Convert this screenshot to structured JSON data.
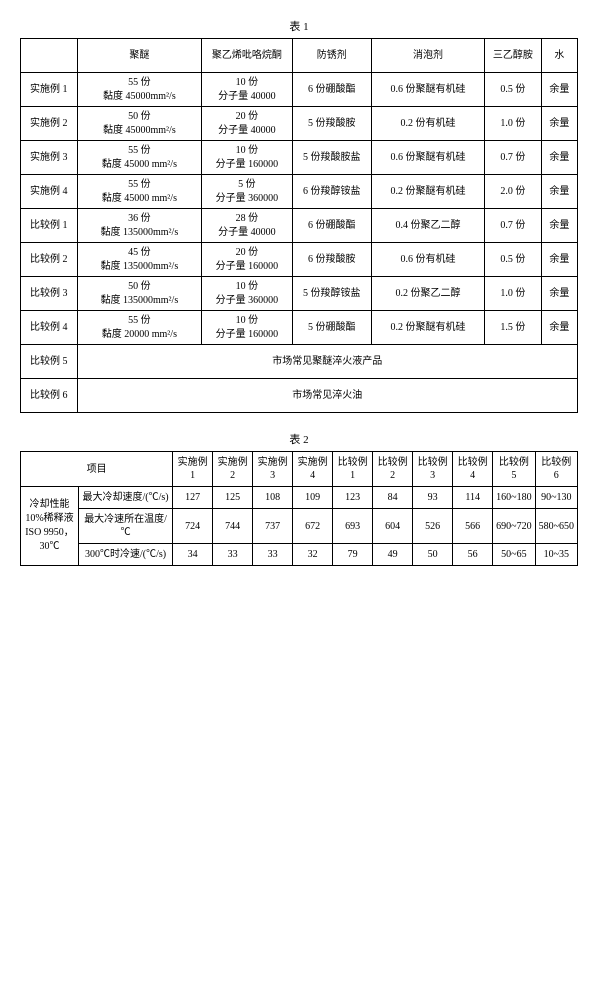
{
  "table1": {
    "caption": "表 1",
    "headers": [
      "聚醚",
      "聚乙烯吡咯烷酮",
      "防锈剂",
      "消泡剂",
      "三乙醇胺",
      "水"
    ],
    "row_labels": [
      "实施例 1",
      "实施例 2",
      "实施例 3",
      "实施例 4",
      "比较例 1",
      "比较例 2",
      "比较例 3",
      "比较例 4",
      "比较例 5",
      "比较例 6"
    ],
    "polymer": [
      {
        "parts": "55 份",
        "visc": "黏度 45000mm²/s"
      },
      {
        "parts": "50 份",
        "visc": "黏度 45000mm²/s"
      },
      {
        "parts": "55 份",
        "visc": "黏度 45000 mm²/s"
      },
      {
        "parts": "55 份",
        "visc": "黏度 45000 mm²/s"
      },
      {
        "parts": "36 份",
        "visc": "黏度 135000mm²/s"
      },
      {
        "parts": "45 份",
        "visc": "黏度 135000mm²/s"
      },
      {
        "parts": "50 份",
        "visc": "黏度 135000mm²/s"
      },
      {
        "parts": "55 份",
        "visc": "黏度 20000 mm²/s"
      }
    ],
    "pvp": [
      {
        "parts": "10 份",
        "mw": "分子量 40000"
      },
      {
        "parts": "20 份",
        "mw": "分子量 40000"
      },
      {
        "parts": "10 份",
        "mw": "分子量 160000"
      },
      {
        "parts": "5 份",
        "mw": "分子量 360000"
      },
      {
        "parts": "28 份",
        "mw": "分子量 40000"
      },
      {
        "parts": "20 份",
        "mw": "分子量 160000"
      },
      {
        "parts": "10 份",
        "mw": "分子量 360000"
      },
      {
        "parts": "10 份",
        "mw": "分子量 160000"
      }
    ],
    "rust": [
      "6 份硼酸酯",
      "5 份羧酸胺",
      "5 份羧酸胺盐",
      "6 份羧醇铵盐",
      "6 份硼酸酯",
      "6 份羧酸胺",
      "5 份羧醇铵盐",
      "5 份硼酸酯"
    ],
    "defoam": [
      "0.6 份聚醚有机硅",
      "0.2 份有机硅",
      "0.6 份聚醚有机硅",
      "0.2 份聚醚有机硅",
      "0.4 份聚乙二醇",
      "0.6 份有机硅",
      "0.2 份聚乙二醇",
      "0.2 份聚醚有机硅"
    ],
    "tea": [
      "0.5 份",
      "1.0 份",
      "0.7 份",
      "2.0 份",
      "0.7 份",
      "0.5 份",
      "1.0 份",
      "1.5 份"
    ],
    "water": [
      "余量",
      "余量",
      "余量",
      "余量",
      "余量",
      "余量",
      "余量",
      "余量"
    ],
    "merged5": "市场常见聚醚淬火液产品",
    "merged6": "市场常见淬火油"
  },
  "table2": {
    "caption": "表 2",
    "proj_header": "项目",
    "col_headers": [
      "实施例 1",
      "实施例 2",
      "实施例 3",
      "实施例 4",
      "比较例 1",
      "比较例 2",
      "比较例 3",
      "比较例 4",
      "比较例 5",
      "比较例 6"
    ],
    "side_label": "冷却性能\n10%稀释液\nISO 9950，30℃",
    "rows": [
      {
        "label": "最大冷却速度/(℃/s)",
        "vals": [
          "127",
          "125",
          "108",
          "109",
          "123",
          "84",
          "93",
          "114",
          "160~180",
          "90~130"
        ]
      },
      {
        "label": "最大冷速所在温度/℃",
        "vals": [
          "724",
          "744",
          "737",
          "672",
          "693",
          "604",
          "526",
          "566",
          "690~720",
          "580~650"
        ]
      },
      {
        "label": "300℃时冷速/(℃/s)",
        "vals": [
          "34",
          "33",
          "33",
          "32",
          "79",
          "49",
          "50",
          "56",
          "50~65",
          "10~35"
        ]
      }
    ]
  }
}
